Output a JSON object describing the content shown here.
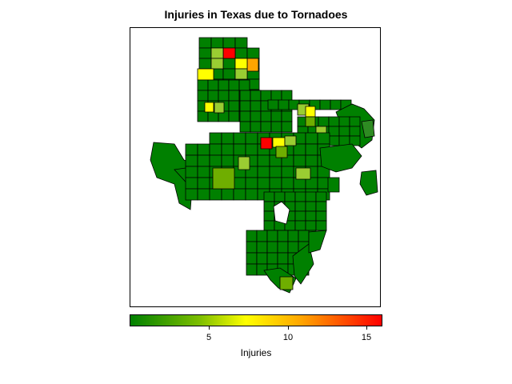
{
  "title": "Injuries in Texas due to Tornadoes",
  "legend": {
    "label": "Injuries",
    "min": 0,
    "max": 16,
    "ticks": [
      5,
      10,
      15
    ],
    "colors": [
      "#008000",
      "#7fbf00",
      "#ffff00",
      "#ffa500",
      "#ff0000"
    ]
  },
  "map": {
    "region": "Texas counties (partial)",
    "base_color": "#008000",
    "border_color": "#000000",
    "highlighted_counties": [
      {
        "area": "panhandle-north",
        "injuries": 15,
        "color": "#ff0000"
      },
      {
        "area": "panhandle-east",
        "injuries": 12,
        "color": "#ffa500"
      },
      {
        "area": "panhandle-center",
        "injuries": 9,
        "color": "#ffff00"
      },
      {
        "area": "panhandle-south",
        "injuries": 8,
        "color": "#ffff00"
      },
      {
        "area": "north-central",
        "injuries": 16,
        "color": "#ff0000"
      },
      {
        "area": "northeast",
        "injuries": 8,
        "color": "#ffff00"
      },
      {
        "area": "central-west",
        "injuries": 5,
        "color": "#9acd32"
      }
    ]
  }
}
